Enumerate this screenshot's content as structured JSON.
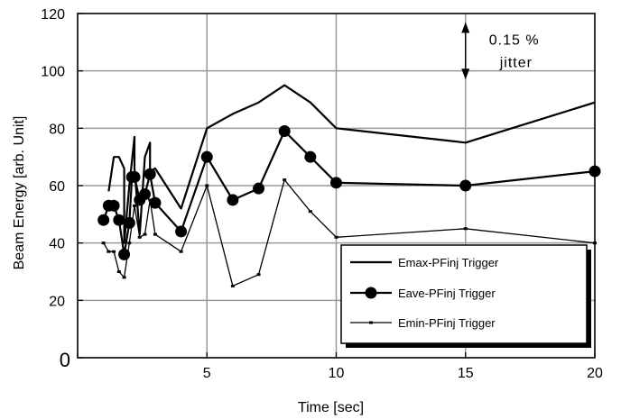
{
  "chart_data": {
    "type": "line",
    "xlabel": "Time [sec]",
    "ylabel": "Beam Energy [arb. Unit]",
    "xlim": [
      0,
      20
    ],
    "ylim": [
      0,
      120
    ],
    "xticks": [
      0,
      5,
      10,
      15,
      20
    ],
    "yticks": [
      0,
      20,
      40,
      60,
      80,
      100,
      120
    ],
    "grid": true,
    "legend_position": "bottom-right",
    "series": [
      {
        "name": "Emax-PFinj Trigger",
        "marker": "none",
        "x": [
          1.2,
          1.4,
          1.6,
          1.8,
          1.8,
          2.0,
          2.2,
          2.2,
          2.4,
          2.6,
          2.8,
          2.8,
          3.0,
          4.0,
          5.0,
          6.0,
          7.0,
          8.0,
          9.0,
          10.0,
          15.0,
          20.0
        ],
        "y": [
          58,
          70,
          70,
          66,
          40,
          60,
          77,
          66,
          43,
          70,
          75,
          65,
          66,
          52,
          80,
          85,
          89,
          95,
          89,
          80,
          75,
          89
        ]
      },
      {
        "name": "Eave-PFinj Trigger",
        "marker": "circle",
        "x": [
          1.0,
          1.2,
          1.4,
          1.6,
          1.8,
          2.0,
          2.1,
          2.2,
          2.4,
          2.6,
          2.8,
          3.0,
          4.0,
          5.0,
          6.0,
          7.0,
          8.0,
          9.0,
          10.0,
          15.0,
          20.0
        ],
        "y": [
          48,
          53,
          53,
          48,
          36,
          47,
          63,
          63,
          55,
          57,
          64,
          54,
          44,
          70,
          55,
          59,
          79,
          70,
          61,
          60,
          65
        ]
      },
      {
        "name": "Emin-PFinj Trigger",
        "marker": "dash",
        "x": [
          1.0,
          1.2,
          1.4,
          1.6,
          1.8,
          2.0,
          2.2,
          2.4,
          2.6,
          2.8,
          3.0,
          4.0,
          5.0,
          6.0,
          7.0,
          8.0,
          9.0,
          10.0,
          15.0,
          20.0
        ],
        "y": [
          40,
          37,
          37,
          30,
          28,
          40,
          53,
          42,
          43,
          55,
          43,
          37,
          60,
          25,
          29,
          62,
          51,
          42,
          45,
          40
        ]
      }
    ],
    "annotation": {
      "line1": "0.15 %",
      "line2": "jitter",
      "x": 15,
      "y_range": [
        97,
        117
      ]
    }
  }
}
